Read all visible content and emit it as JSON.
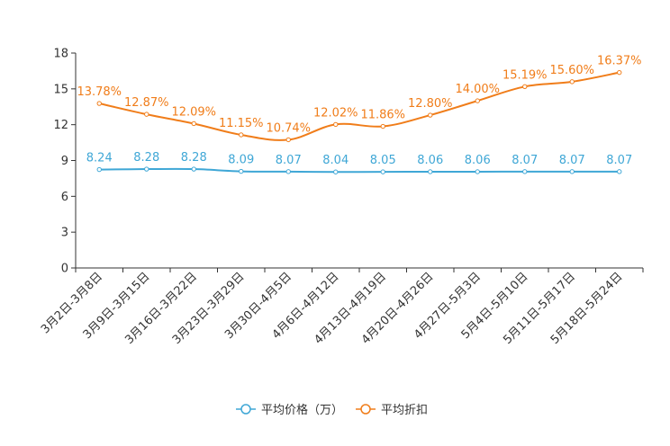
{
  "chart_data": {
    "type": "line",
    "title": "",
    "xlabel": "",
    "ylabel": "",
    "ylim": [
      0,
      18
    ],
    "yticks": [
      0,
      3,
      6,
      9,
      12,
      15,
      18
    ],
    "categories": [
      "3月2日-3月8日",
      "3月9日-3月15日",
      "3月16日-3月22日",
      "3月23日-3月29日",
      "3月30日-4月5日",
      "4月6日-4月12日",
      "4月13日-4月19日",
      "4月20日-4月26日",
      "4月27日-5月3日",
      "5月4日-5月10日",
      "5月11日-5月17日",
      "5月18日-5月24日"
    ],
    "series": [
      {
        "name": "平均价格（万）",
        "color": "#3fa7d6",
        "values": [
          8.24,
          8.28,
          8.28,
          8.09,
          8.07,
          8.04,
          8.05,
          8.06,
          8.06,
          8.07,
          8.07,
          8.07
        ],
        "labels": [
          "8.24",
          "8.28",
          "8.28",
          "8.09",
          "8.07",
          "8.04",
          "8.05",
          "8.06",
          "8.06",
          "8.07",
          "8.07",
          "8.07"
        ]
      },
      {
        "name": "平均折扣",
        "color": "#f07d1a",
        "values": [
          13.78,
          12.87,
          12.09,
          11.15,
          10.74,
          12.02,
          11.86,
          12.8,
          14.0,
          15.19,
          15.6,
          16.37
        ],
        "labels": [
          "13.78%",
          "12.87%",
          "12.09%",
          "11.15%",
          "10.74%",
          "12.02%",
          "11.86%",
          "12.80%",
          "14.00%",
          "15.19%",
          "15.60%",
          "16.37%"
        ]
      }
    ],
    "legend_position": "bottom-center",
    "grid": false
  }
}
